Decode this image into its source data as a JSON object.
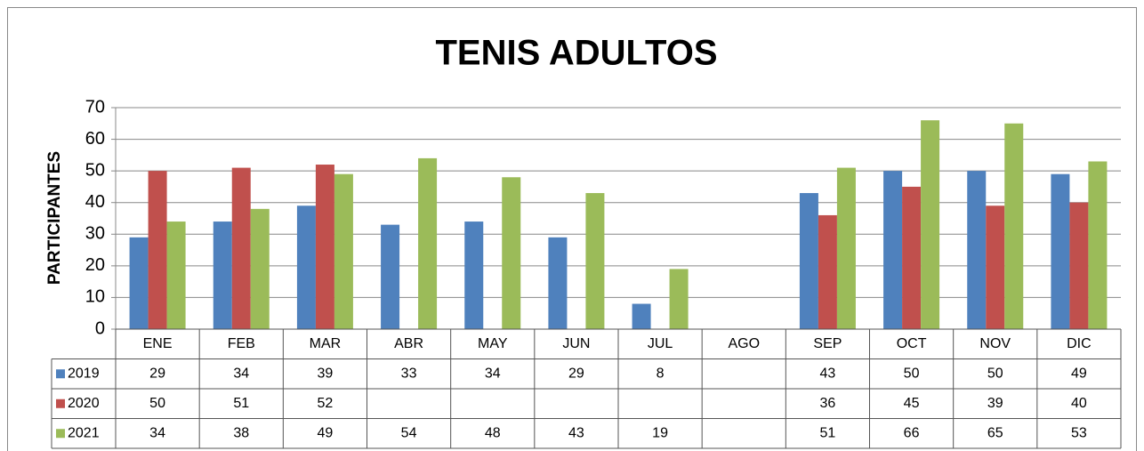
{
  "chart_data": {
    "type": "bar",
    "title": "TENIS ADULTOS",
    "y_label": "PARTICIPANTES",
    "categories": [
      "ENE",
      "FEB",
      "MAR",
      "ABR",
      "MAY",
      "JUN",
      "JUL",
      "AGO",
      "SEP",
      "OCT",
      "NOV",
      "DIC"
    ],
    "series": [
      {
        "name": "2019",
        "color": "#4f81bd",
        "values": [
          29,
          34,
          39,
          33,
          34,
          29,
          8,
          null,
          43,
          50,
          50,
          49
        ]
      },
      {
        "name": "2020",
        "color": "#c0504d",
        "values": [
          50,
          51,
          52,
          null,
          null,
          null,
          null,
          null,
          36,
          45,
          39,
          40
        ]
      },
      {
        "name": "2021",
        "color": "#9bbb59",
        "values": [
          34,
          38,
          49,
          54,
          48,
          43,
          19,
          null,
          51,
          66,
          65,
          53
        ]
      }
    ],
    "ylim": [
      0,
      70
    ],
    "yticks": [
      0,
      10,
      20,
      30,
      40,
      50,
      60,
      70
    ],
    "grid": true,
    "data_table": true
  }
}
